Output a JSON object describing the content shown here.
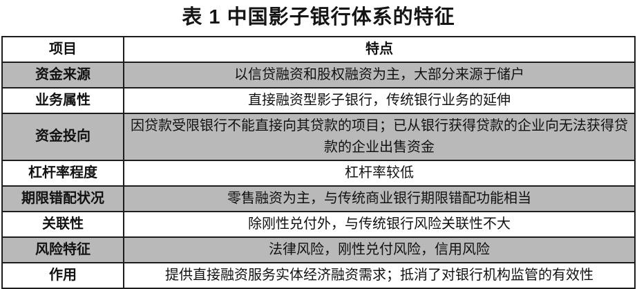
{
  "title": "表 1 中国影子银行体系的特征",
  "table": {
    "headers": {
      "item": "项目",
      "feature": "特点"
    },
    "rows": [
      {
        "item": "资金来源",
        "feature": "以信贷融资和股权融资为主，大部分来源于储户",
        "shaded": true
      },
      {
        "item": "业务属性",
        "feature": "直接融资型影子银行，传统银行业务的延伸",
        "shaded": false
      },
      {
        "item": "资金投向",
        "feature": "因贷款受限银行不能直接向其贷款的项目；已从银行获得贷款的企业向无法获得贷款的企业出售资金",
        "shaded": true
      },
      {
        "item": "杠杆率程度",
        "feature": "杠杆率较低",
        "shaded": false
      },
      {
        "item": "期限错配状况",
        "feature": "零售融资为主，与传统商业银行期限错配功能相当",
        "shaded": true
      },
      {
        "item": "关联性",
        "feature": "除刚性兑付外，与传统银行风险关联性不大",
        "shaded": false
      },
      {
        "item": "风险特征",
        "feature": "法律风险，刚性兑付风险，信用风险",
        "shaded": true
      },
      {
        "item": "作用",
        "feature": "提供直接融资服务实体经济融资需求；抵消了对银行机构监管的有效性",
        "shaded": false
      }
    ]
  },
  "colors": {
    "shaded_row": "#b9b9b9",
    "border": "#1c1c1c",
    "background": "#ffffff",
    "text": "#111111"
  }
}
